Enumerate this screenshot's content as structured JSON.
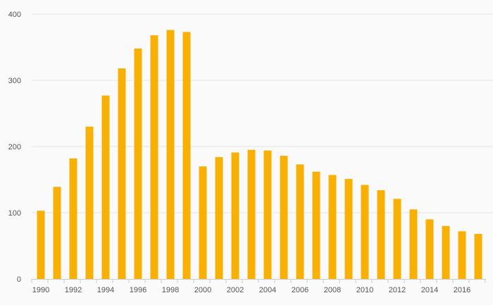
{
  "chart_data": {
    "type": "bar",
    "categories": [
      "1990",
      "1991",
      "1992",
      "1993",
      "1994",
      "1995",
      "1996",
      "1997",
      "1998",
      "1999",
      "2000",
      "2001",
      "2002",
      "2003",
      "2004",
      "2005",
      "2006",
      "2007",
      "2008",
      "2009",
      "2010",
      "2011",
      "2012",
      "2013",
      "2014",
      "2015",
      "2016",
      "2017"
    ],
    "x_tick_labels": [
      "1990",
      "1992",
      "1994",
      "1996",
      "1998",
      "2000",
      "2002",
      "2004",
      "2006",
      "2008",
      "2010",
      "2012",
      "2014",
      "2016"
    ],
    "series": [
      {
        "values": [
          103,
          139,
          182,
          230,
          277,
          318,
          348,
          368,
          376,
          373,
          170,
          184,
          191,
          195,
          194,
          186,
          173,
          162,
          157,
          151,
          142,
          134,
          121,
          105,
          90,
          80,
          72,
          68
        ]
      }
    ],
    "title": "",
    "xlabel": "",
    "ylabel": "",
    "ylim": [
      0,
      400
    ],
    "y_ticks": [
      0,
      100,
      200,
      300,
      400
    ],
    "grid": true,
    "legend": "none",
    "bar_color": "#f9b005"
  }
}
